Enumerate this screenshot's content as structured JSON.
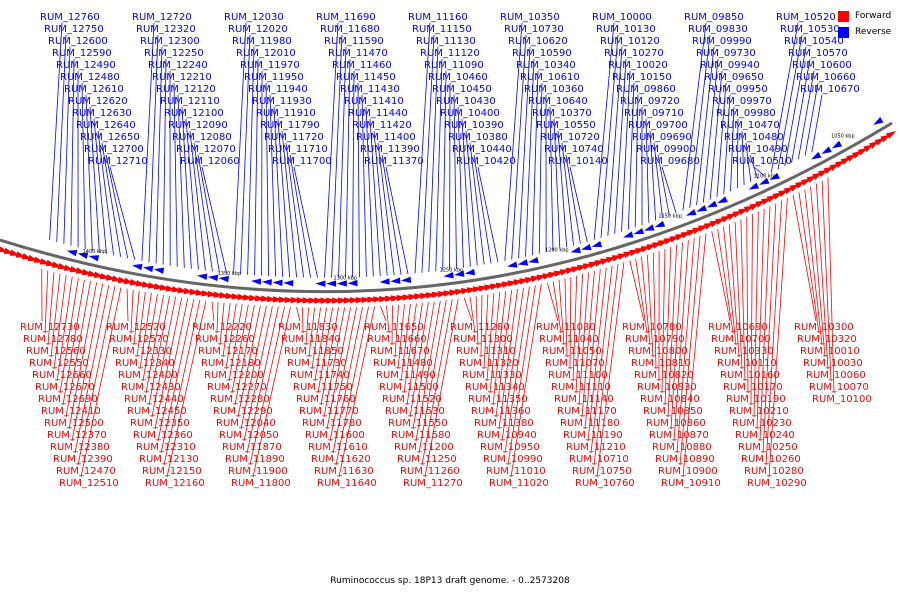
{
  "legend": {
    "forward_label": "Forward",
    "reverse_label": "Reverse",
    "forward_color": "#ff0000",
    "reverse_color": "#0000ff"
  },
  "caption": "Ruminococcus sp. 18P13 draft genome. - 0..2573208",
  "scale_labels": [
    "1400 kbp",
    "1350 kbp",
    "1300 kbp",
    "1250 kbp",
    "1200 kbp",
    "1150 kbp",
    "1100 kbp",
    "1050 kbp"
  ],
  "reverse_genes": [
    "RUM_12760",
    "RUM_12750",
    "RUM_12600",
    "RUM_12590",
    "RUM_12490",
    "RUM_12480",
    "RUM_12610",
    "RUM_12620",
    "RUM_12630",
    "RUM_12640",
    "RUM_12650",
    "RUM_12700",
    "RUM_12710",
    "RUM_12720",
    "RUM_12320",
    "RUM_12300",
    "RUM_12250",
    "RUM_12240",
    "RUM_12210",
    "RUM_12120",
    "RUM_12110",
    "RUM_12100",
    "RUM_12090",
    "RUM_12080",
    "RUM_12070",
    "RUM_12060",
    "RUM_12030",
    "RUM_12020",
    "RUM_11980",
    "RUM_12010",
    "RUM_11970",
    "RUM_11950",
    "RUM_11940",
    "RUM_11930",
    "RUM_11910",
    "RUM_11790",
    "RUM_11720",
    "RUM_11710",
    "RUM_11700",
    "RUM_11690",
    "RUM_11680",
    "RUM_11590",
    "RUM_11470",
    "RUM_11460",
    "RUM_11450",
    "RUM_11430",
    "RUM_11410",
    "RUM_11440",
    "RUM_11420",
    "RUM_11400",
    "RUM_11390",
    "RUM_11370",
    "RUM_11160",
    "RUM_11150",
    "RUM_11130",
    "RUM_11120",
    "RUM_11090",
    "RUM_10460",
    "RUM_10450",
    "RUM_10430",
    "RUM_10400",
    "RUM_10390",
    "RUM_10380",
    "RUM_10440",
    "RUM_10420",
    "RUM_10350",
    "RUM_10730",
    "RUM_10620",
    "RUM_10590",
    "RUM_10340",
    "RUM_10610",
    "RUM_10360",
    "RUM_10640",
    "RUM_10370",
    "RUM_10550",
    "RUM_10720",
    "RUM_10740",
    "RUM_10140",
    "RUM_10000",
    "RUM_10130",
    "RUM_10120",
    "RUM_10270",
    "RUM_10020",
    "RUM_10150",
    "RUM_09860",
    "RUM_09720",
    "RUM_09710",
    "RUM_09700",
    "RUM_09690",
    "RUM_09900",
    "RUM_09680",
    "RUM_09850",
    "RUM_09830",
    "RUM_09990",
    "RUM_09730",
    "RUM_09940",
    "RUM_09650",
    "RUM_09950",
    "RUM_09970",
    "RUM_09980",
    "RUM_10470",
    "RUM_10480",
    "RUM_10490",
    "RUM_10510",
    "RUM_10520",
    "RUM_10530",
    "RUM_10540",
    "RUM_10570",
    "RUM_10600",
    "RUM_10660",
    "RUM_10670"
  ],
  "forward_genes": [
    "RUM_12730",
    "RUM_12780",
    "RUM_12560",
    "RUM_12550",
    "RUM_12660",
    "RUM_12670",
    "RUM_12690",
    "RUM_12410",
    "RUM_12500",
    "RUM_12370",
    "RUM_12380",
    "RUM_12390",
    "RUM_12470",
    "RUM_12510",
    "RUM_12520",
    "RUM_12570",
    "RUM_12330",
    "RUM_12340",
    "RUM_12400",
    "RUM_12430",
    "RUM_12440",
    "RUM_12450",
    "RUM_12350",
    "RUM_12360",
    "RUM_12310",
    "RUM_12130",
    "RUM_12150",
    "RUM_12160",
    "RUM_12220",
    "RUM_12260",
    "RUM_12170",
    "RUM_12180",
    "RUM_12200",
    "RUM_12270",
    "RUM_12280",
    "RUM_12290",
    "RUM_12040",
    "RUM_12050",
    "RUM_11870",
    "RUM_11890",
    "RUM_11900",
    "RUM_11800",
    "RUM_11830",
    "RUM_11840",
    "RUM_11850",
    "RUM_11730",
    "RUM_11740",
    "RUM_11750",
    "RUM_11760",
    "RUM_11770",
    "RUM_11780",
    "RUM_11600",
    "RUM_11610",
    "RUM_11620",
    "RUM_11630",
    "RUM_11640",
    "RUM_11650",
    "RUM_11660",
    "RUM_11670",
    "RUM_11480",
    "RUM_11490",
    "RUM_11500",
    "RUM_11520",
    "RUM_11530",
    "RUM_11550",
    "RUM_11580",
    "RUM_11200",
    "RUM_11250",
    "RUM_11260",
    "RUM_11270",
    "RUM_11280",
    "RUM_11300",
    "RUM_11310",
    "RUM_11320",
    "RUM_11330",
    "RUM_11340",
    "RUM_11350",
    "RUM_11360",
    "RUM_11380",
    "RUM_10940",
    "RUM_10950",
    "RUM_10990",
    "RUM_11010",
    "RUM_11020",
    "RUM_11030",
    "RUM_11040",
    "RUM_11050",
    "RUM_11070",
    "RUM_11100",
    "RUM_11110",
    "RUM_11140",
    "RUM_11170",
    "RUM_11180",
    "RUM_11190",
    "RUM_11210",
    "RUM_10710",
    "RUM_10750",
    "RUM_10760",
    "RUM_10780",
    "RUM_10790",
    "RUM_10800",
    "RUM_10810",
    "RUM_10820",
    "RUM_10830",
    "RUM_10840",
    "RUM_10850",
    "RUM_10860",
    "RUM_10870",
    "RUM_10880",
    "RUM_10890",
    "RUM_10900",
    "RUM_10910",
    "RUM_10690",
    "RUM_10700",
    "RUM_10330",
    "RUM_10110",
    "RUM_10160",
    "RUM_10170",
    "RUM_10190",
    "RUM_10210",
    "RUM_10230",
    "RUM_10240",
    "RUM_10250",
    "RUM_10260",
    "RUM_10280",
    "RUM_10290",
    "RUM_10300",
    "RUM_10320",
    "RUM_10010",
    "RUM_10030",
    "RUM_10060",
    "RUM_10070",
    "RUM_10100"
  ]
}
